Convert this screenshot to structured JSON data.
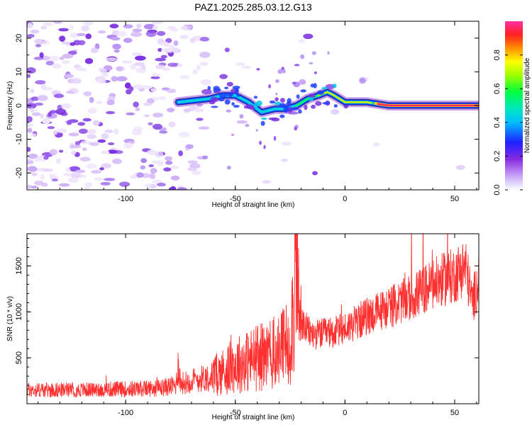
{
  "title": "PAZ1.2025.285.03.12.G13",
  "colors": {
    "signal": "#ff3030",
    "noise": "#a070f0",
    "band_edge": "#1c2a80",
    "core": "#ff2a5a"
  },
  "chart_data": [
    {
      "type": "heatmap",
      "title": "PAZ1.2025.285.03.12.G13",
      "xlabel": "Height of straight line (km)",
      "ylabel": "Frequency (Hz)",
      "xlim": [
        -145,
        61
      ],
      "ylim": [
        -25,
        25
      ],
      "xticks": [
        -100,
        -50,
        0,
        50
      ],
      "yticks": [
        -20,
        -10,
        0,
        10,
        20
      ],
      "colorbar": {
        "label": "Normalized spectral amplitude",
        "ticks": [
          0.0,
          0.2,
          0.4,
          0.6,
          0.8
        ],
        "range": [
          0,
          1
        ]
      },
      "signal_track": {
        "x": [
          -76,
          -62,
          -56,
          -50,
          -44,
          -38,
          -32,
          -27,
          -22,
          -17,
          -12,
          -8,
          -5,
          0,
          10,
          20,
          30,
          40,
          50,
          61
        ],
        "frequency": [
          1,
          2,
          3,
          3,
          1,
          -2,
          -1,
          -1,
          0,
          2,
          3,
          4,
          3,
          1,
          1,
          0,
          0,
          0,
          0,
          0
        ]
      }
    },
    {
      "type": "line",
      "xlabel": "Height of straight line (km)",
      "ylabel": "SNR (10 * v/v)",
      "xlim": [
        -145,
        61
      ],
      "ylim": [
        0,
        1850
      ],
      "xticks": [
        -100,
        -50,
        0,
        50
      ],
      "yticks": [
        500,
        1000,
        1500
      ],
      "series": [
        {
          "name": "SNR",
          "x": [
            -145,
            -120,
            -100,
            -85,
            -77,
            -76,
            -75,
            -70,
            -60,
            -50,
            -40,
            -30,
            -25,
            -23,
            -22,
            -21,
            -15,
            -5,
            0,
            10,
            20,
            30,
            40,
            50,
            55,
            58,
            61
          ],
          "y": [
            150,
            150,
            160,
            170,
            200,
            450,
            220,
            250,
            300,
            420,
            500,
            560,
            700,
            1200,
            1850,
            900,
            750,
            780,
            820,
            950,
            1050,
            1150,
            1300,
            1400,
            1500,
            1100,
            1350
          ]
        }
      ]
    }
  ]
}
